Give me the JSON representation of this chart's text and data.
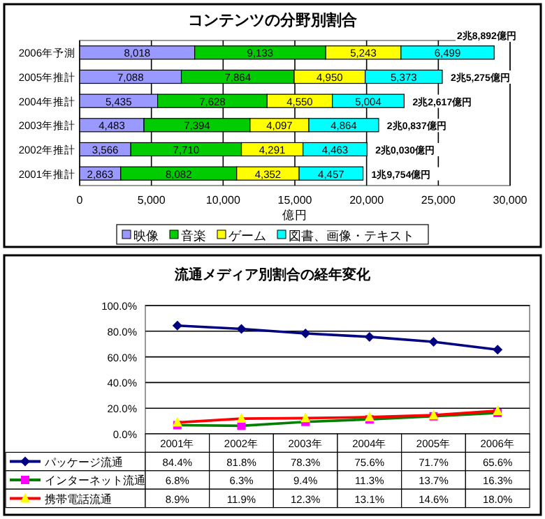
{
  "chart_data": [
    {
      "type": "bar",
      "orientation": "horizontal",
      "stacked": true,
      "title": "コンテンツの分野別割合",
      "xlabel": "億円",
      "categories": [
        "2006年予測",
        "2005年推計",
        "2004年推計",
        "2003年推計",
        "2002年推計",
        "2001年推計"
      ],
      "series": [
        {
          "name": "映像",
          "color": "#9999ff",
          "values": [
            8018,
            7088,
            5435,
            4483,
            3566,
            2863
          ],
          "value_labels": [
            "8,018",
            "7,088",
            "5,435",
            "4,483",
            "3,566",
            "2,863"
          ]
        },
        {
          "name": "音楽",
          "color": "#00cc00",
          "values": [
            9133,
            7864,
            7628,
            7394,
            7710,
            8082
          ],
          "value_labels": [
            "9,133",
            "7,864",
            "7,628",
            "7,394",
            "7,710",
            "8,082"
          ]
        },
        {
          "name": "ゲーム",
          "color": "#ffff00",
          "values": [
            5243,
            4950,
            4550,
            4097,
            4291,
            4352
          ],
          "value_labels": [
            "5,243",
            "4,950",
            "4,550",
            "4,097",
            "4,291",
            "4,352"
          ]
        },
        {
          "name": "図書、画像・テキスト",
          "color": "#00ffff",
          "values": [
            6499,
            5373,
            5004,
            4864,
            4463,
            4457
          ],
          "value_labels": [
            "6,499",
            "5,373",
            "5,004",
            "4,864",
            "4,463",
            "4,457"
          ]
        }
      ],
      "totals": [
        "2兆8,892億円",
        "2兆5,275億円",
        "2兆2,617億円",
        "2兆0,837億円",
        "2兆0,030億円",
        "1兆9,754億円"
      ],
      "xlim": [
        0,
        30000
      ],
      "xticks": [
        {
          "value": 0,
          "label": "0"
        },
        {
          "value": 5000,
          "label": "5,000"
        },
        {
          "value": 10000,
          "label": "10,000"
        },
        {
          "value": 15000,
          "label": "15,000"
        },
        {
          "value": 20000,
          "label": "20,000"
        },
        {
          "value": 25000,
          "label": "25,000"
        },
        {
          "value": 30000,
          "label": "30,000"
        }
      ],
      "grid": "x",
      "legend": "bottom"
    },
    {
      "type": "line",
      "title": "流通メディア別割合の経年変化",
      "categories": [
        "2001年",
        "2002年",
        "2003年",
        "2004年",
        "2005年",
        "2006年"
      ],
      "series": [
        {
          "name": "パッケージ流通",
          "color": "#000080",
          "marker": "diamond",
          "colors": [
            "#000080",
            "#000080",
            "#000080",
            "#000080",
            "#000080",
            "#000080"
          ],
          "values": [
            84.4,
            81.8,
            78.3,
            75.6,
            71.7,
            65.6
          ],
          "value_labels": [
            "84.4%",
            "81.8%",
            "78.3%",
            "75.6%",
            "71.7%",
            "65.6%"
          ]
        },
        {
          "name": "インターネット流通",
          "color": "#008000",
          "marker": "square",
          "colors": [
            "#ff00ff",
            "#ff00ff",
            "#ff00ff",
            "#ff00ff",
            "#ff00ff",
            "#ff00ff"
          ],
          "values": [
            6.8,
            6.3,
            9.4,
            11.3,
            13.7,
            16.3
          ],
          "value_labels": [
            "6.8%",
            "6.3%",
            "9.4%",
            "11.3%",
            "13.7%",
            "16.3%"
          ]
        },
        {
          "name": "携帯電話流通",
          "color": "#ff0000",
          "marker": "triangle",
          "colors": [
            "#ffff00",
            "#ffff00",
            "#ffff00",
            "#ffff00",
            "#ffff00",
            "#ffff00"
          ],
          "values": [
            8.9,
            11.9,
            12.3,
            13.1,
            14.6,
            18.0
          ],
          "value_labels": [
            "8.9%",
            "11.9%",
            "12.3%",
            "13.1%",
            "14.6%",
            "18.0%"
          ]
        }
      ],
      "ylim": [
        0,
        100
      ],
      "yticks": [
        {
          "value": 0,
          "label": "0.0%"
        },
        {
          "value": 20,
          "label": "20.0%"
        },
        {
          "value": 40,
          "label": "40.0%"
        },
        {
          "value": 60,
          "label": "60.0%"
        },
        {
          "value": 80,
          "label": "80.0%"
        },
        {
          "value": 100,
          "label": "100.0%"
        }
      ],
      "grid": "y",
      "legend": "bottom left"
    }
  ]
}
